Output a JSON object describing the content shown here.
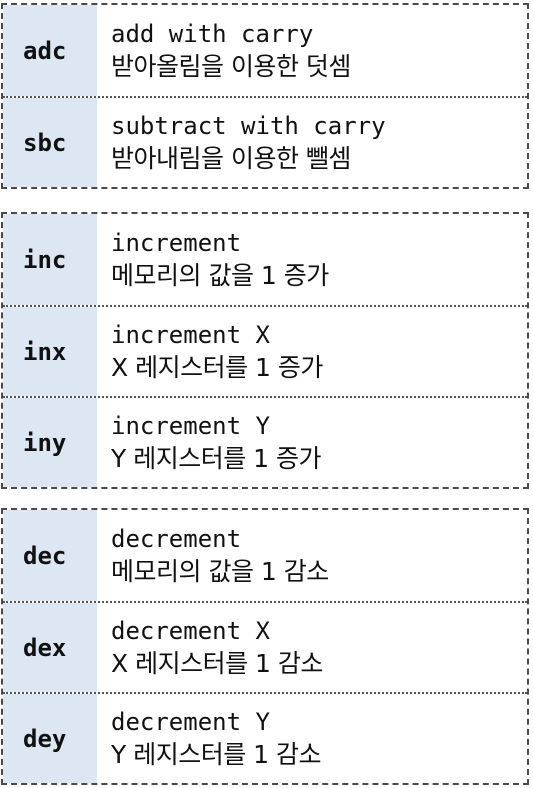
{
  "groups": [
    {
      "rows": [
        {
          "mnemonic": "adc",
          "english": "add with carry",
          "korean": "받아올림을 이용한 덧셈"
        },
        {
          "mnemonic": "sbc",
          "english": "subtract with carry",
          "korean": "받아내림을 이용한 뺄셈"
        }
      ]
    },
    {
      "rows": [
        {
          "mnemonic": "inc",
          "english": "increment",
          "korean": "메모리의 값을 1 증가"
        },
        {
          "mnemonic": "inx",
          "english": "increment X",
          "korean": "X 레지스터를 1 증가"
        },
        {
          "mnemonic": "iny",
          "english": "increment Y",
          "korean": "Y 레지스터를 1 증가"
        }
      ]
    },
    {
      "rows": [
        {
          "mnemonic": "dec",
          "english": "decrement",
          "korean": "메모리의 값을 1 감소"
        },
        {
          "mnemonic": "dex",
          "english": "decrement X",
          "korean": "X 레지스터를 1 감소"
        },
        {
          "mnemonic": "dey",
          "english": "decrement Y",
          "korean": "Y 레지스터를 1 감소"
        }
      ]
    }
  ]
}
